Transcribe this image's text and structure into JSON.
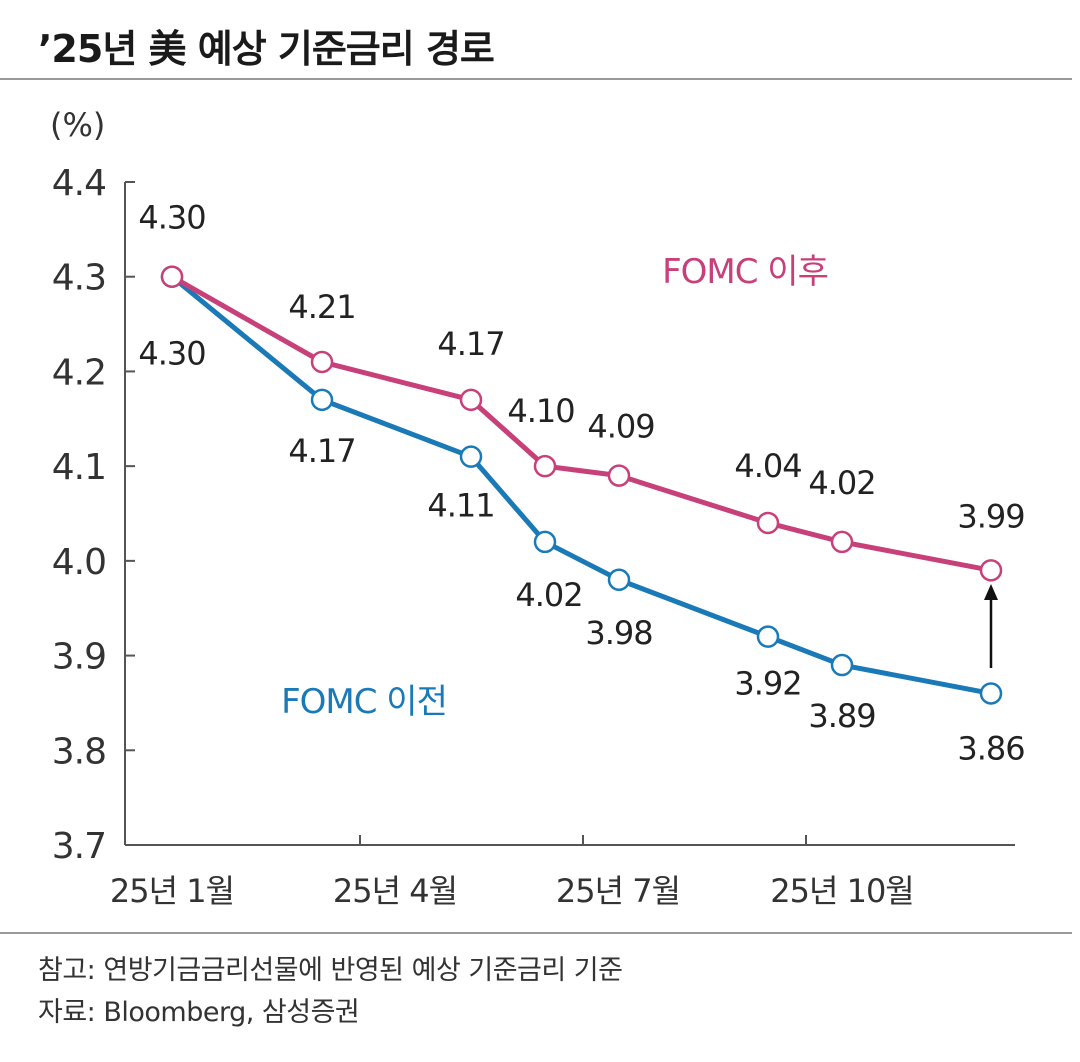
{
  "chart_data": {
    "type": "line",
    "title": "’25년 美 예상 기준금리 경로",
    "ylabel": "(%)",
    "ylim": [
      3.7,
      4.4
    ],
    "yticks": [
      "3.7",
      "3.8",
      "3.9",
      "4.0",
      "4.1",
      "4.2",
      "4.3",
      "4.4"
    ],
    "xtick_labels": [
      "25년 1월",
      "25년 4월",
      "25년 7월",
      "25년 10월"
    ],
    "x_positions": [
      0,
      1,
      2,
      3,
      4,
      5,
      6,
      7,
      8
    ],
    "grid": false,
    "series": [
      {
        "name": "FOMC 이후",
        "color": "#c8407a",
        "values": [
          4.3,
          4.21,
          4.17,
          4.1,
          4.09,
          4.04,
          4.02,
          3.99
        ],
        "x": [
          0,
          1,
          2,
          2.6,
          3.2,
          4.4,
          5.0,
          5.9
        ],
        "labels": [
          "4.30",
          "4.21",
          "4.17",
          "4.10",
          "4.09",
          "4.04",
          "4.02",
          "3.99"
        ]
      },
      {
        "name": "FOMC 이전",
        "color": "#1a7ab8",
        "values": [
          4.3,
          4.17,
          4.11,
          4.02,
          3.98,
          3.92,
          3.89,
          3.86
        ],
        "x": [
          0,
          1,
          2,
          2.6,
          3.2,
          4.4,
          5.0,
          5.9
        ],
        "labels": [
          "4.30",
          "4.17",
          "4.11",
          "4.02",
          "3.98",
          "3.92",
          "3.89",
          "3.86"
        ]
      }
    ],
    "annotation": "arrow from FOMC 이전 to FOMC 이후 at last point"
  },
  "notes": {
    "reference": "참고: 연방기금금리선물에 반영된 예상 기준금리 기준",
    "source": "자료: Bloomberg, 삼성증권"
  },
  "colors": {
    "after": "#c8407a",
    "before": "#1a7ab8",
    "axis": "#555555"
  }
}
